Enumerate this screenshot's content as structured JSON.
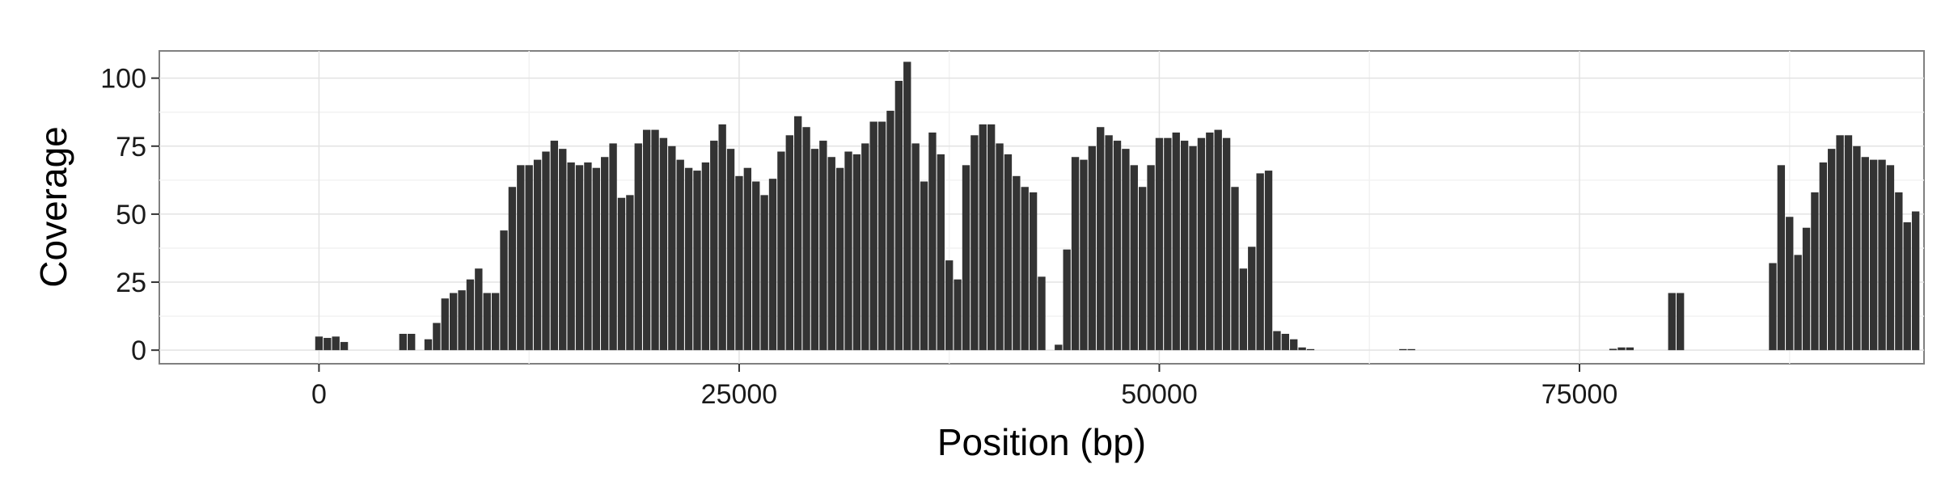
{
  "chart_data": {
    "type": "bar",
    "title": "",
    "xlabel": "Position (bp)",
    "ylabel": "Coverage",
    "xlim": [
      -9500,
      95500
    ],
    "ylim": [
      -5,
      110
    ],
    "x_ticks": [
      0,
      25000,
      50000,
      75000
    ],
    "x_tick_labels": [
      "0",
      "25000",
      "50000",
      "75000"
    ],
    "y_ticks": [
      0,
      25,
      50,
      75,
      100
    ],
    "y_tick_labels": [
      "0",
      "25",
      "50",
      "75",
      "100"
    ],
    "grid": true,
    "legend": "none",
    "bin_width": 500,
    "x": [
      0,
      500,
      1000,
      1500,
      5000,
      5500,
      6500,
      7000,
      7500,
      8000,
      8500,
      9000,
      9500,
      10000,
      10500,
      11000,
      11500,
      12000,
      12500,
      13000,
      13500,
      14000,
      14500,
      15000,
      15500,
      16000,
      16500,
      17000,
      17500,
      18000,
      18500,
      19000,
      19500,
      20000,
      20500,
      21000,
      21500,
      22000,
      22500,
      23000,
      23500,
      24000,
      24500,
      25000,
      25500,
      26000,
      26500,
      27000,
      27500,
      28000,
      28500,
      29000,
      29500,
      30000,
      30500,
      31000,
      31500,
      32000,
      32500,
      33000,
      33500,
      34000,
      34500,
      35000,
      35500,
      36000,
      36500,
      37000,
      37500,
      38000,
      38500,
      39000,
      39500,
      40000,
      40500,
      41000,
      41500,
      42000,
      42500,
      43000,
      44000,
      44500,
      45000,
      45500,
      46000,
      46500,
      47000,
      47500,
      48000,
      48500,
      49000,
      49500,
      50000,
      50500,
      51000,
      51500,
      52000,
      52500,
      53000,
      53500,
      54000,
      54500,
      55000,
      55500,
      56000,
      56500,
      57000,
      57500,
      58000,
      58500,
      59000,
      64500,
      65000,
      77000,
      77500,
      78000,
      80500,
      81000,
      86500,
      87000,
      87500,
      88000,
      88500,
      89000,
      89500,
      90000,
      90500,
      91000,
      91500,
      92000,
      92500,
      93000,
      93500,
      94000,
      94500,
      95000
    ],
    "values": [
      5,
      4.5,
      5,
      3,
      6,
      6,
      4,
      10,
      19,
      21,
      22,
      26,
      30,
      21,
      21,
      44,
      60,
      68,
      68,
      70,
      73,
      77,
      74,
      69,
      68,
      69,
      67,
      71,
      76,
      56,
      57,
      76,
      81,
      81,
      78,
      75,
      70,
      67,
      66,
      69,
      77,
      83,
      74,
      64,
      67,
      62,
      57,
      63,
      73,
      79,
      86,
      82,
      74,
      77,
      71,
      67,
      73,
      72,
      76,
      84,
      84,
      88,
      99,
      106,
      76,
      62,
      80,
      72,
      33,
      26,
      68,
      79,
      83,
      83,
      76,
      72,
      64,
      60,
      58,
      27,
      2,
      37,
      71,
      70,
      75,
      82,
      79,
      77,
      74,
      68,
      60,
      68,
      78,
      78,
      80,
      77,
      75,
      78,
      80,
      81,
      78,
      60,
      30,
      38,
      65,
      66,
      7,
      6,
      4,
      1,
      0.4,
      0.4,
      0.4,
      0.5,
      1,
      1,
      21,
      21,
      32,
      68,
      49,
      35,
      45,
      58,
      69,
      74,
      79,
      79,
      75,
      71,
      70,
      70,
      68,
      58,
      47,
      51
    ]
  }
}
